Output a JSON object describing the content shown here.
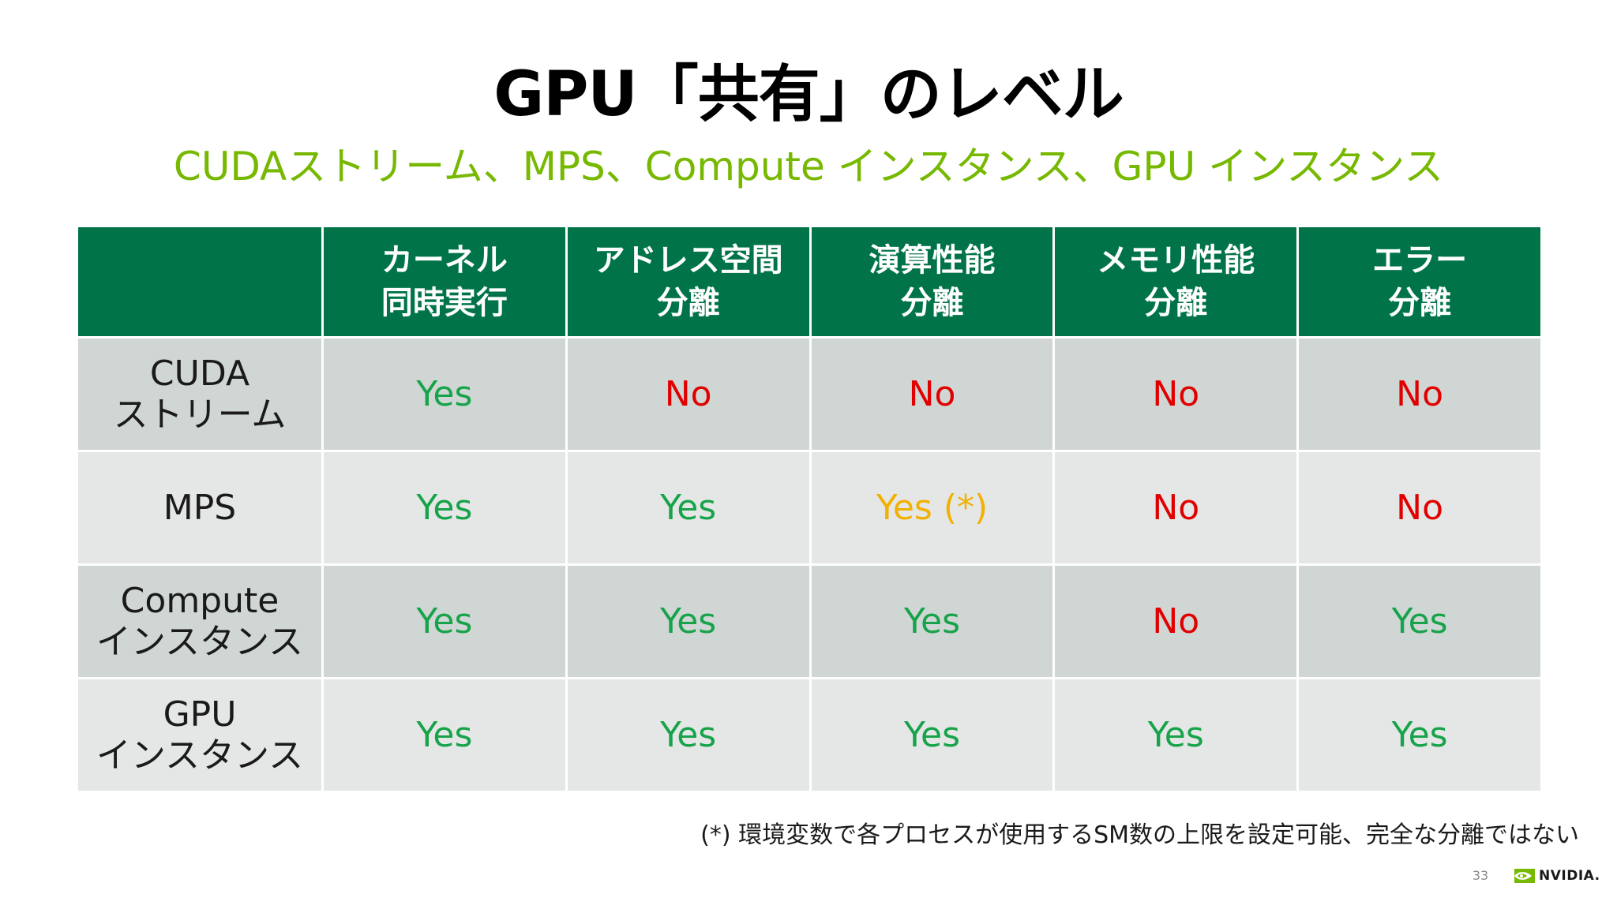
{
  "slide": {
    "title": "GPU「共有」のレベル",
    "subtitle": "CUDAストリーム、MPS、Compute インスタンス、GPU インスタンス",
    "footnote": "(*) 環境変数で各プロセスが使用するSM数の上限を設定可能、完全な分離ではない",
    "page_number": "33",
    "logo_text": "NVIDIA.",
    "logo_icon": "nvidia-eye-icon"
  },
  "colors": {
    "header_bg": "#007448",
    "row_shade_a": "#d0d6d4",
    "row_shade_b": "#e5e7e6",
    "yes": "#17a34a",
    "no": "#e00000",
    "partial": "#f2b000",
    "subtitle": "#76b900"
  },
  "table": {
    "columns": [
      {
        "line1": "カーネル",
        "line2": "同時実行"
      },
      {
        "line1": "アドレス空間",
        "line2": "分離"
      },
      {
        "line1": "演算性能",
        "line2": "分離"
      },
      {
        "line1": "メモリ性能",
        "line2": "分離"
      },
      {
        "line1": "エラー",
        "line2": "分離"
      }
    ],
    "rows": [
      {
        "label_line1": "CUDA",
        "label_line2": "ストリーム",
        "cells": [
          {
            "text": "Yes",
            "status": "yes"
          },
          {
            "text": "No",
            "status": "no"
          },
          {
            "text": "No",
            "status": "no"
          },
          {
            "text": "No",
            "status": "no"
          },
          {
            "text": "No",
            "status": "no"
          }
        ]
      },
      {
        "label_line1": "MPS",
        "label_line2": "",
        "cells": [
          {
            "text": "Yes",
            "status": "yes"
          },
          {
            "text": "Yes",
            "status": "yes"
          },
          {
            "text": "Yes (*)",
            "status": "partial"
          },
          {
            "text": "No",
            "status": "no"
          },
          {
            "text": "No",
            "status": "no"
          }
        ]
      },
      {
        "label_line1": "Compute",
        "label_line2": "インスタンス",
        "cells": [
          {
            "text": "Yes",
            "status": "yes"
          },
          {
            "text": "Yes",
            "status": "yes"
          },
          {
            "text": "Yes",
            "status": "yes"
          },
          {
            "text": "No",
            "status": "no"
          },
          {
            "text": "Yes",
            "status": "yes"
          }
        ]
      },
      {
        "label_line1": "GPU",
        "label_line2": "インスタンス",
        "cells": [
          {
            "text": "Yes",
            "status": "yes"
          },
          {
            "text": "Yes",
            "status": "yes"
          },
          {
            "text": "Yes",
            "status": "yes"
          },
          {
            "text": "Yes",
            "status": "yes"
          },
          {
            "text": "Yes",
            "status": "yes"
          }
        ]
      }
    ]
  }
}
